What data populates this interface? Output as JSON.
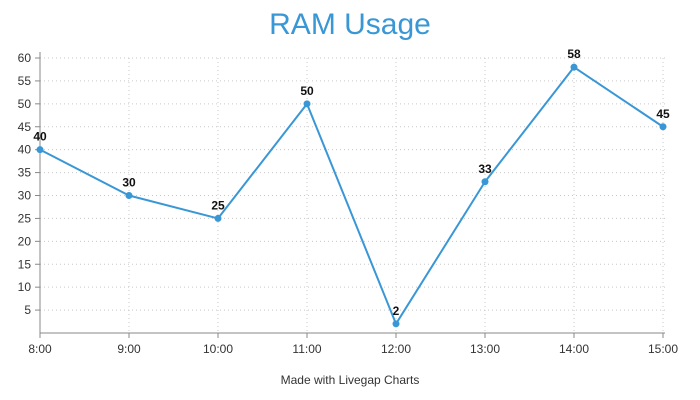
{
  "chart_data": {
    "type": "line",
    "title": "RAM Usage",
    "xlabel": "",
    "ylabel": "",
    "categories": [
      "8:00",
      "9:00",
      "10:00",
      "11:00",
      "12:00",
      "13:00",
      "14:00",
      "15:00"
    ],
    "series": [
      {
        "values": [
          40,
          30,
          25,
          50,
          2,
          33,
          58,
          45
        ]
      }
    ],
    "ylim": [
      0,
      60
    ],
    "yticks": [
      5,
      10,
      15,
      20,
      25,
      30,
      35,
      40,
      45,
      50,
      55,
      60
    ],
    "grid": true,
    "data_labels": true
  },
  "footer": {
    "text": "Made with Livegap Charts"
  },
  "colors": {
    "line": "#3a97d6",
    "title": "#3a97d6",
    "grid": "#c8c8c8",
    "axis": "#888888"
  }
}
